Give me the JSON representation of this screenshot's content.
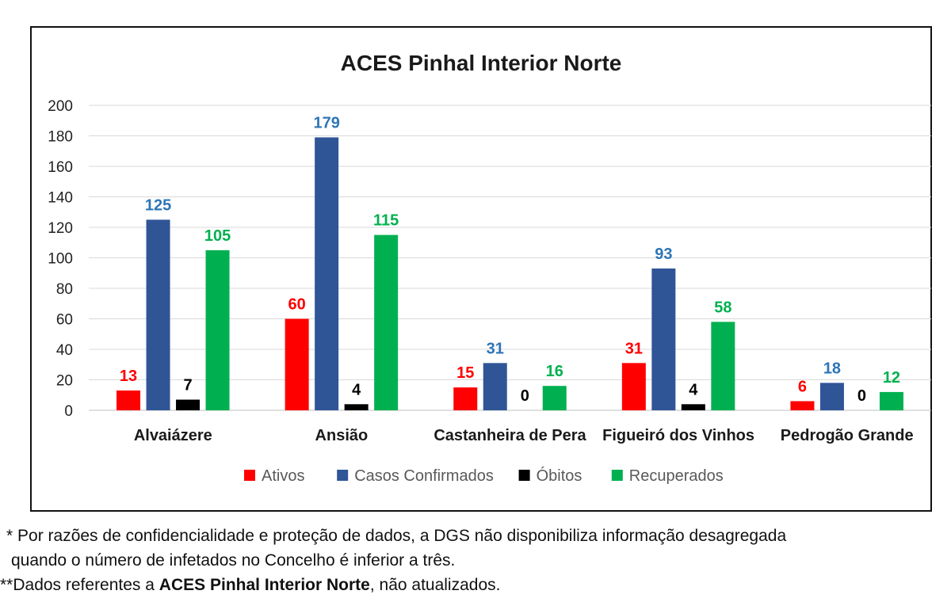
{
  "chart_data": {
    "type": "bar",
    "title": "ACES Pinhal Interior Norte",
    "categories": [
      "Alvaiázere",
      "Ansião",
      "Castanheira de Pera",
      "Figueiró dos Vinhos",
      "Pedrogão Grande"
    ],
    "series": [
      {
        "name": "Ativos",
        "color": "#ff0000",
        "values": [
          13,
          60,
          15,
          31,
          6
        ]
      },
      {
        "name": "Casos Confirmados",
        "color": "#2f5597",
        "values": [
          125,
          179,
          31,
          93,
          18
        ]
      },
      {
        "name": "Óbitos",
        "color": "#000000",
        "values": [
          7,
          4,
          0,
          4,
          0
        ]
      },
      {
        "name": "Recuperados",
        "color": "#00b050",
        "values": [
          105,
          115,
          16,
          58,
          12
        ]
      }
    ],
    "label_colors": [
      "#ff0000",
      "#2e75b6",
      "#000000",
      "#00b050"
    ],
    "xlabel": "",
    "ylabel": "",
    "ylim": [
      0,
      200
    ],
    "yticks": [
      0,
      20,
      40,
      60,
      80,
      100,
      120,
      140,
      160,
      180,
      200
    ],
    "grid": true,
    "legend_position": "bottom"
  },
  "footnotes": {
    "line1": "* Por razões de confidencialidade e proteção de dados, a DGS não disponibiliza informação desagregada",
    "line2": "quando o número de infetados no Concelho é inferior a três.",
    "line3_prefix": "**Dados referentes a ",
    "line3_bold": "ACES Pinhal Interior Norte",
    "line3_suffix": ", não atualizados."
  }
}
